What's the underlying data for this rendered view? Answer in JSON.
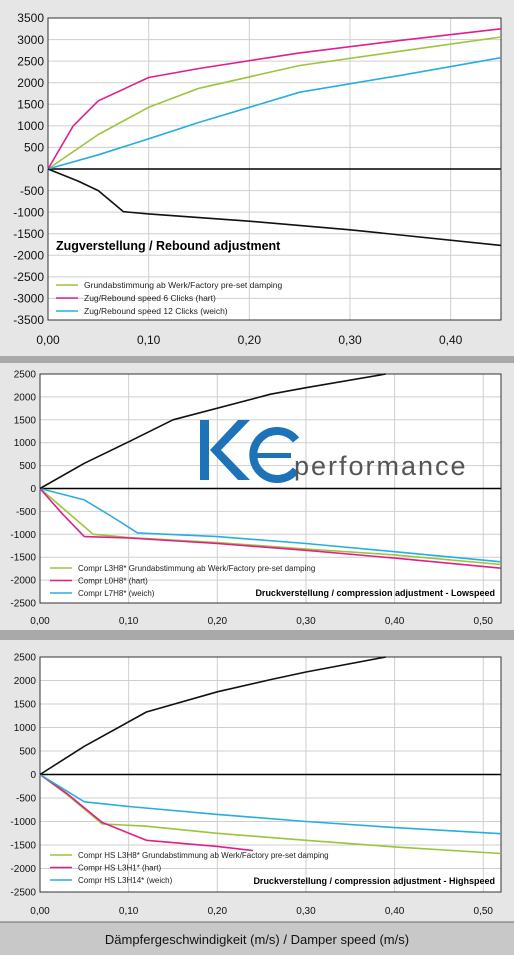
{
  "chart_data": [
    {
      "type": "line",
      "title": "Zugverstellung / Rebound adjustment",
      "xlim": [
        0,
        0.45
      ],
      "ylim": [
        -3500,
        3500
      ],
      "xticks": [
        "0,00",
        "0,10",
        "0,20",
        "0,30",
        "0,40"
      ],
      "yticks": [
        "3500",
        "3000",
        "2500",
        "2000",
        "1500",
        "1000",
        "500",
        "0",
        "-500",
        "-1000",
        "-1500",
        "-2000",
        "-2500",
        "-3000",
        "-3500"
      ],
      "grid": true,
      "legend_position": "bottom-left",
      "series": [
        {
          "name": "Grundabstimmung ab Werk/Factory pre-set damping",
          "color": "#9dc43a",
          "x": [
            0,
            0.05,
            0.1,
            0.15,
            0.25,
            0.35,
            0.45
          ],
          "y": [
            0,
            800,
            1430,
            1870,
            2400,
            2730,
            3060
          ]
        },
        {
          "name": "Zug/Rebound speed     6 Clicks  (hart)",
          "color": "#e0208a",
          "x": [
            0,
            0.025,
            0.05,
            0.1,
            0.15,
            0.25,
            0.35,
            0.45
          ],
          "y": [
            0,
            1000,
            1580,
            2120,
            2330,
            2690,
            2980,
            3250
          ]
        },
        {
          "name": "Zug/Rebound speed   12 Clicks  (weich)",
          "color": "#27aee0",
          "x": [
            0,
            0.05,
            0.1,
            0.15,
            0.25,
            0.35,
            0.45
          ],
          "y": [
            0,
            330,
            700,
            1080,
            1780,
            2170,
            2580
          ]
        },
        {
          "name": "",
          "color": "#111111",
          "x": [
            0,
            0.03,
            0.05,
            0.075,
            0.1,
            0.2,
            0.3,
            0.45
          ],
          "y": [
            0,
            -280,
            -500,
            -990,
            -1040,
            -1210,
            -1410,
            -1770
          ]
        }
      ]
    },
    {
      "type": "line",
      "title": "Druckverstellung / compression adjustment - Lowspeed",
      "xlim": [
        0,
        0.52
      ],
      "ylim": [
        -2500,
        2500
      ],
      "xticks": [
        "0,00",
        "0,10",
        "0,20",
        "0,30",
        "0,40",
        "0,50"
      ],
      "yticks": [
        "2500",
        "2000",
        "1500",
        "1000",
        "500",
        "0",
        "-500",
        "-1000",
        "-1500",
        "-2000",
        "-2500"
      ],
      "grid": true,
      "legend_position": "bottom-left",
      "series": [
        {
          "name": "Compr L3H8* Grundabstimmung ab Werk/Factory pre-set damping",
          "color": "#9dc43a",
          "x": [
            0,
            0.03,
            0.06,
            0.1,
            0.2,
            0.3,
            0.4,
            0.52
          ],
          "y": [
            0,
            -500,
            -1000,
            -1070,
            -1180,
            -1320,
            -1450,
            -1660
          ]
        },
        {
          "name": "Compr L0H8* (hart)",
          "color": "#e0208a",
          "x": [
            0,
            0.025,
            0.05,
            0.1,
            0.2,
            0.3,
            0.4,
            0.52
          ],
          "y": [
            0,
            -550,
            -1050,
            -1080,
            -1200,
            -1350,
            -1520,
            -1740
          ]
        },
        {
          "name": "Compr L7H8* (weich)",
          "color": "#27aee0",
          "x": [
            0,
            0.05,
            0.08,
            0.11,
            0.2,
            0.3,
            0.4,
            0.52
          ],
          "y": [
            0,
            -250,
            -600,
            -970,
            -1050,
            -1200,
            -1380,
            -1600
          ]
        },
        {
          "name": "",
          "color": "#111111",
          "x": [
            0,
            0.05,
            0.1,
            0.15,
            0.26,
            0.3,
            0.39
          ],
          "y": [
            0,
            550,
            1020,
            1500,
            2060,
            2200,
            2500
          ]
        }
      ]
    },
    {
      "type": "line",
      "title": "Druckverstellung / compression adjustment - Highspeed",
      "xlim": [
        0,
        0.52
      ],
      "ylim": [
        -2500,
        2500
      ],
      "xticks": [
        "0,00",
        "0,10",
        "0,20",
        "0,30",
        "0,40",
        "0,50"
      ],
      "yticks": [
        "2500",
        "2000",
        "1500",
        "1000",
        "500",
        "0",
        "-500",
        "-1000",
        "-1500",
        "-2000",
        "-2500"
      ],
      "grid": true,
      "legend_position": "bottom-left",
      "series": [
        {
          "name": "Compr HS L3H8* Grundabstimmung ab Werk/Factory pre-set damping",
          "color": "#9dc43a",
          "x": [
            0,
            0.03,
            0.07,
            0.12,
            0.2,
            0.3,
            0.4,
            0.52
          ],
          "y": [
            0,
            -420,
            -1050,
            -1100,
            -1250,
            -1400,
            -1540,
            -1680
          ]
        },
        {
          "name": "Compr HS L3H1* (hart)",
          "color": "#e0208a",
          "x": [
            0,
            0.03,
            0.07,
            0.12,
            0.2,
            0.24
          ],
          "y": [
            0,
            -400,
            -1020,
            -1400,
            -1530,
            -1620
          ]
        },
        {
          "name": "Compr HS L3H14* (weich)",
          "color": "#27aee0",
          "x": [
            0,
            0.05,
            0.1,
            0.2,
            0.3,
            0.4,
            0.52
          ],
          "y": [
            0,
            -580,
            -680,
            -850,
            -1000,
            -1130,
            -1260
          ]
        },
        {
          "name": "",
          "color": "#111111",
          "x": [
            0,
            0.05,
            0.12,
            0.2,
            0.26,
            0.3,
            0.39
          ],
          "y": [
            0,
            600,
            1330,
            1760,
            2020,
            2180,
            2500
          ]
        }
      ]
    }
  ],
  "footer": {
    "xlabel": "Dämpfergeschwindigkeit (m/s) / Damper speed (m/s)"
  },
  "logo": {
    "main": "KC",
    "sub": "performance"
  }
}
